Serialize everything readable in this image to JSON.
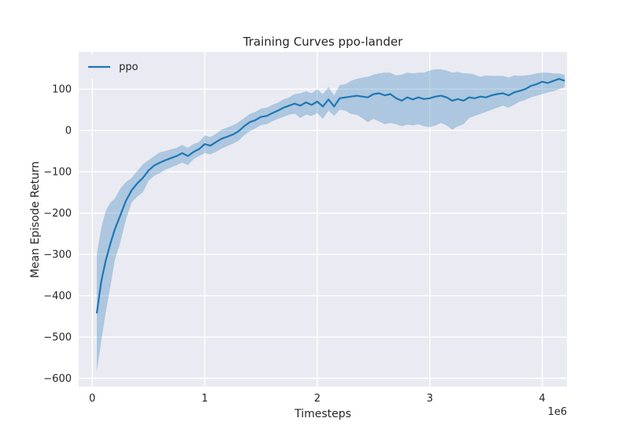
{
  "chart_data": {
    "type": "line",
    "title": "Training Curves ppo-lander",
    "xlabel": "Timesteps",
    "ylabel": "Mean Episode Return",
    "x_offset_label": "1e6",
    "xlim": [
      -0.12,
      4.22
    ],
    "ylim": [
      -620,
      190
    ],
    "x_ticks": [
      0,
      1,
      2,
      3,
      4
    ],
    "x_tick_labels": [
      "0",
      "1",
      "2",
      "3",
      "4"
    ],
    "y_ticks": [
      -600,
      -500,
      -400,
      -300,
      -200,
      -100,
      0,
      100
    ],
    "y_tick_labels": [
      "−600",
      "−500",
      "−400",
      "−300",
      "−200",
      "−100",
      "0",
      "100"
    ],
    "grid": true,
    "legend": {
      "position": "top-left",
      "entries": [
        "ppo"
      ]
    },
    "colors": {
      "line": "#1f77b4",
      "band": "#1f77b4",
      "background": "#eaeaf2",
      "grid": "#ffffff"
    },
    "series": [
      {
        "name": "ppo",
        "x": [
          0.04,
          0.08,
          0.12,
          0.16,
          0.2,
          0.25,
          0.3,
          0.35,
          0.4,
          0.45,
          0.5,
          0.55,
          0.6,
          0.65,
          0.7,
          0.75,
          0.8,
          0.85,
          0.9,
          0.95,
          1.0,
          1.05,
          1.1,
          1.15,
          1.2,
          1.25,
          1.3,
          1.35,
          1.4,
          1.45,
          1.5,
          1.55,
          1.6,
          1.65,
          1.7,
          1.75,
          1.8,
          1.85,
          1.9,
          1.95,
          2.0,
          2.05,
          2.1,
          2.15,
          2.2,
          2.25,
          2.3,
          2.35,
          2.4,
          2.45,
          2.5,
          2.55,
          2.6,
          2.65,
          2.7,
          2.75,
          2.8,
          2.85,
          2.9,
          2.95,
          3.0,
          3.05,
          3.1,
          3.15,
          3.2,
          3.25,
          3.3,
          3.35,
          3.4,
          3.45,
          3.5,
          3.55,
          3.6,
          3.65,
          3.7,
          3.75,
          3.8,
          3.85,
          3.9,
          3.95,
          4.0,
          4.05,
          4.1,
          4.15,
          4.2
        ],
        "mean": [
          -443,
          -365,
          -315,
          -275,
          -240,
          -205,
          -170,
          -145,
          -128,
          -115,
          -97,
          -85,
          -78,
          -72,
          -67,
          -62,
          -55,
          -62,
          -52,
          -45,
          -33,
          -37,
          -28,
          -20,
          -15,
          -10,
          -2,
          10,
          20,
          25,
          33,
          35,
          42,
          48,
          55,
          60,
          65,
          60,
          68,
          62,
          70,
          58,
          75,
          58,
          78,
          80,
          82,
          84,
          82,
          80,
          88,
          90,
          85,
          88,
          78,
          72,
          80,
          75,
          80,
          76,
          78,
          82,
          84,
          80,
          72,
          76,
          72,
          80,
          78,
          82,
          80,
          85,
          88,
          90,
          85,
          92,
          96,
          100,
          108,
          112,
          118,
          115,
          120,
          125,
          120
        ],
        "lower": [
          -585,
          -510,
          -440,
          -380,
          -315,
          -270,
          -215,
          -175,
          -160,
          -150,
          -122,
          -110,
          -104,
          -95,
          -90,
          -84,
          -78,
          -84,
          -70,
          -62,
          -55,
          -58,
          -52,
          -44,
          -38,
          -32,
          -25,
          -12,
          -2,
          5,
          13,
          15,
          22,
          28,
          33,
          38,
          41,
          30,
          38,
          35,
          42,
          28,
          48,
          35,
          50,
          48,
          40,
          38,
          30,
          20,
          28,
          22,
          15,
          18,
          15,
          10,
          14,
          12,
          15,
          10,
          8,
          12,
          18,
          12,
          2,
          10,
          15,
          30,
          35,
          40,
          45,
          50,
          55,
          60,
          55,
          62,
          70,
          74,
          80,
          84,
          88,
          92,
          95,
          100,
          105
        ],
        "upper": [
          -300,
          -235,
          -195,
          -175,
          -165,
          -140,
          -125,
          -115,
          -98,
          -82,
          -72,
          -62,
          -53,
          -50,
          -46,
          -42,
          -35,
          -42,
          -33,
          -28,
          -12,
          -16,
          -8,
          2,
          7,
          12,
          20,
          30,
          40,
          45,
          53,
          55,
          62,
          67,
          75,
          80,
          88,
          90,
          95,
          90,
          100,
          88,
          105,
          85,
          110,
          112,
          120,
          125,
          128,
          130,
          135,
          138,
          140,
          140,
          133,
          135,
          140,
          138,
          140,
          140,
          145,
          148,
          148,
          145,
          140,
          142,
          138,
          138,
          135,
          130,
          133,
          132,
          132,
          132,
          128,
          133,
          132,
          133,
          135,
          138,
          140,
          140,
          138,
          138,
          135
        ]
      }
    ]
  }
}
